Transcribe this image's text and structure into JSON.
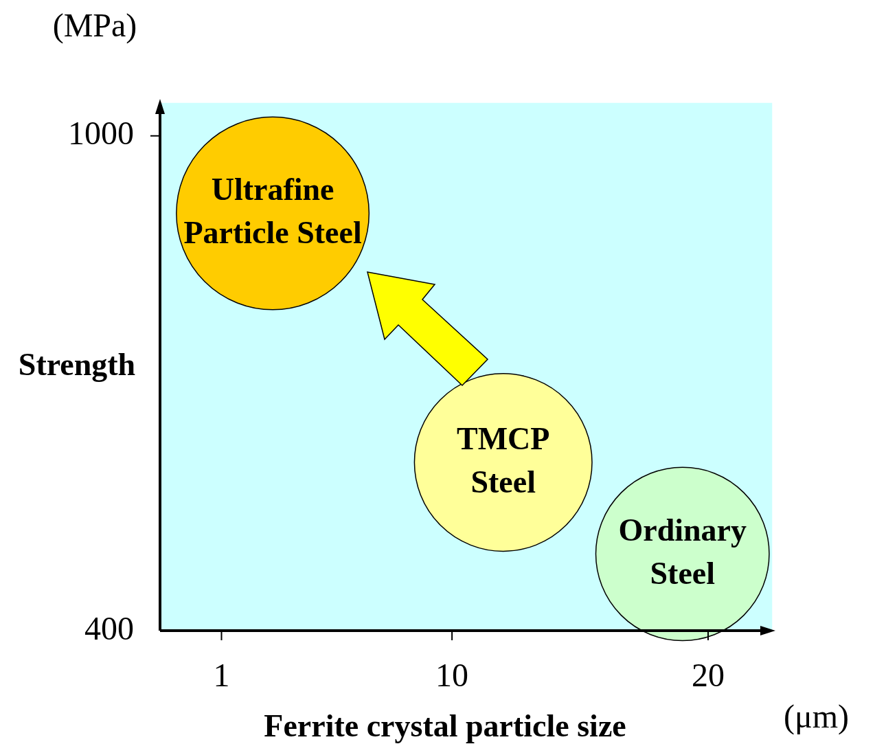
{
  "chart_data": {
    "type": "bubble",
    "xlabel": "Ferrite crystal particle size",
    "ylabel": "Strength",
    "annotations": [
      "(MPa)",
      "(μm)"
    ],
    "xlim": [
      -1.4,
      22.5
    ],
    "xticks": [
      1,
      10,
      20
    ],
    "ylim": [
      400,
      1040
    ],
    "yticks": [
      400,
      1000
    ],
    "legend": false,
    "series": [
      {
        "name": "Ultrafine Particle Steel",
        "color": "#ffcc00",
        "x": [
          3
        ],
        "values": [
          906
        ],
        "sizes": [
          1
        ]
      },
      {
        "name": "TMCP Steel",
        "color": "#ffff99",
        "x": [
          12
        ],
        "values": [
          604
        ],
        "sizes": [
          0.85
        ]
      },
      {
        "name": "Ordinary Steel",
        "color": "#ccffcc",
        "x": [
          19
        ],
        "values": [
          493
        ],
        "sizes": [
          0.81
        ]
      }
    ]
  }
}
